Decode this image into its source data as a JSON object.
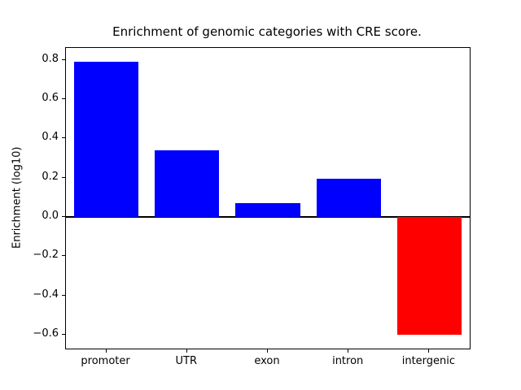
{
  "chart_data": {
    "type": "bar",
    "title": "Enrichment of genomic categories with CRE score.",
    "xlabel": "",
    "ylabel": "Enrichment (log10)",
    "categories": [
      "promoter",
      "UTR",
      "exon",
      "intron",
      "intergenic"
    ],
    "values": [
      0.79,
      0.34,
      0.07,
      0.195,
      -0.6
    ],
    "bar_colors": [
      "#0000ff",
      "#0000ff",
      "#0000ff",
      "#0000ff",
      "#ff0000"
    ],
    "positive_color": "#0000ff",
    "negative_color": "#ff0000",
    "ylim": [
      -0.67,
      0.86
    ],
    "yticks": [
      -0.6,
      -0.4,
      -0.2,
      0.0,
      0.2,
      0.4,
      0.6,
      0.8
    ],
    "ytick_labels": [
      "−0.6",
      "−0.4",
      "−0.2",
      "0.0",
      "0.2",
      "0.4",
      "0.6",
      "0.8"
    ],
    "grid": false,
    "legend_position": "none",
    "zero_line": true,
    "background_color": "#ffffff",
    "axis_color": "#000000"
  }
}
